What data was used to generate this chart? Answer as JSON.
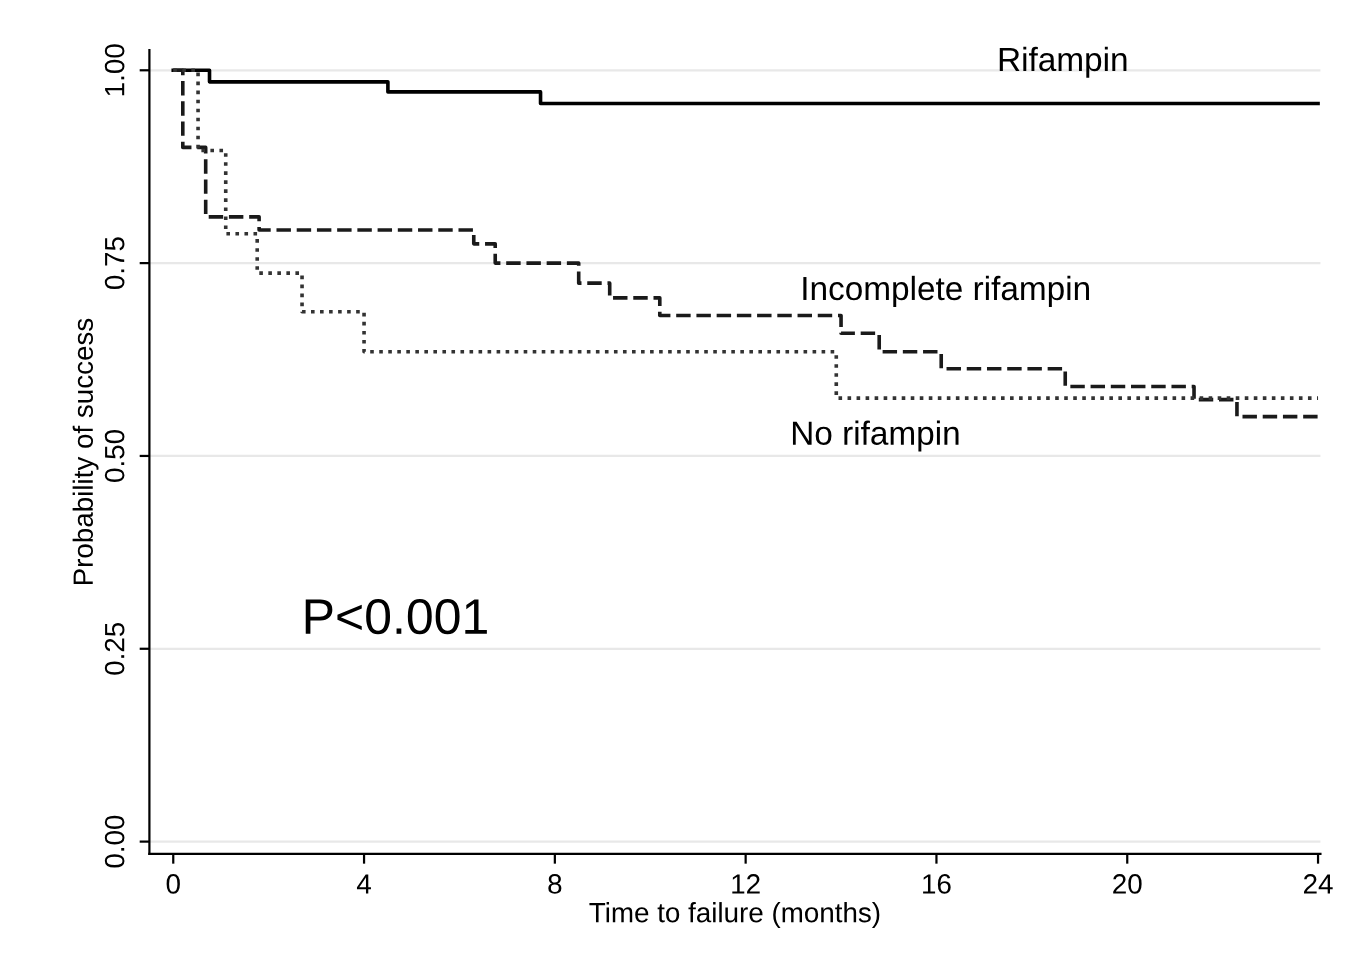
{
  "chart_data": {
    "type": "step",
    "xlabel": "Time to failure (months)",
    "ylabel": "Probability of success",
    "xlim": [
      -0.5,
      24.05
    ],
    "ylim": [
      -0.016,
      1.026
    ],
    "xticks": [
      0,
      4,
      8,
      12,
      16,
      20,
      24
    ],
    "yticks": [
      {
        "value": 0,
        "label": "0.00"
      },
      {
        "value": 0.25,
        "label": "0.25"
      },
      {
        "value": 0.5,
        "label": "0.50"
      },
      {
        "value": 0.75,
        "label": "0.75"
      },
      {
        "value": 1,
        "label": "1.00"
      }
    ],
    "grid": "y",
    "legend": false,
    "annotations": [
      "P<0.001"
    ],
    "series": [
      {
        "name": "Rifampin",
        "color": "#000000",
        "line_style": "solid",
        "x": [
          0,
          0.76,
          4.5,
          7.7,
          24
        ],
        "values": [
          1.0,
          0.985,
          0.972,
          0.957,
          0.957
        ]
      },
      {
        "name": "Incomplete rifampin",
        "color": "#1a1a1a",
        "line_style": "dashed",
        "x": [
          0,
          0.2,
          0.68,
          1.8,
          6.3,
          6.75,
          8.5,
          9.15,
          10.2,
          14.0,
          14.8,
          16.1,
          18.7,
          21.4,
          22.3,
          24
        ],
        "values": [
          1.0,
          0.9,
          0.81,
          0.793,
          0.775,
          0.75,
          0.724,
          0.705,
          0.682,
          0.659,
          0.635,
          0.613,
          0.59,
          0.573,
          0.551,
          0.551
        ]
      },
      {
        "name": "No rifampin",
        "color": "#333333",
        "line_style": "dotted",
        "x": [
          0,
          0.52,
          1.1,
          1.76,
          2.7,
          4.0,
          13.9,
          24
        ],
        "values": [
          1.0,
          0.896,
          0.788,
          0.737,
          0.687,
          0.635,
          0.575,
          0.575
        ]
      }
    ]
  }
}
